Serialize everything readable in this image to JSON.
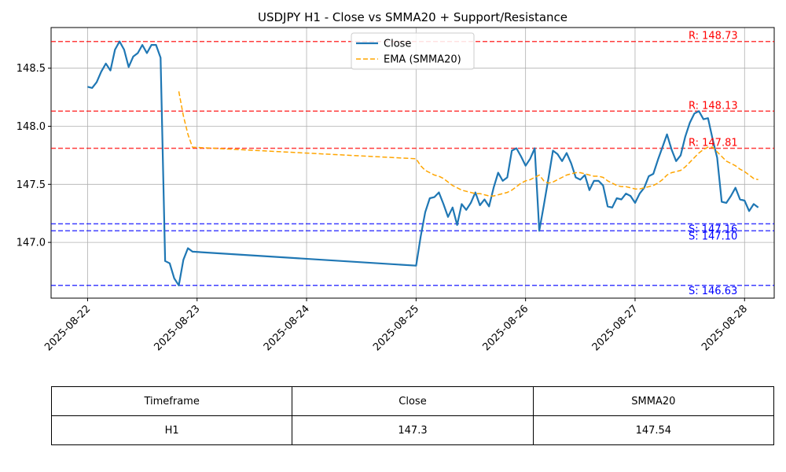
{
  "chart_data": {
    "type": "line",
    "title": "USDJPY H1 - Close vs SMMA20 + Support/Resistance",
    "xlabel": "",
    "ylabel": "",
    "x_ticks": [
      "2025-08-22",
      "2025-08-23",
      "2025-08-24",
      "2025-08-25",
      "2025-08-26",
      "2025-08-27",
      "2025-08-28"
    ],
    "y_ticks": [
      "147.0",
      "147.5",
      "148.0",
      "148.5"
    ],
    "xlim": [
      "2025-08-21 16:00",
      "2025-08-28 06:30"
    ],
    "ylim": [
      146.52,
      148.85
    ],
    "grid": true,
    "legend_position": "top-center",
    "series": [
      {
        "name": "Close",
        "color": "#1f77b4",
        "style": "solid",
        "points": [
          [
            "2025-08-22 00:00",
            148.34
          ],
          [
            "2025-08-22 01:00",
            148.33
          ],
          [
            "2025-08-22 02:00",
            148.38
          ],
          [
            "2025-08-22 03:00",
            148.47
          ],
          [
            "2025-08-22 04:00",
            148.54
          ],
          [
            "2025-08-22 05:00",
            148.48
          ],
          [
            "2025-08-22 06:00",
            148.66
          ],
          [
            "2025-08-22 07:00",
            148.73
          ],
          [
            "2025-08-22 08:00",
            148.66
          ],
          [
            "2025-08-22 09:00",
            148.51
          ],
          [
            "2025-08-22 10:00",
            148.6
          ],
          [
            "2025-08-22 11:00",
            148.63
          ],
          [
            "2025-08-22 12:00",
            148.7
          ],
          [
            "2025-08-22 13:00",
            148.63
          ],
          [
            "2025-08-22 14:00",
            148.7
          ],
          [
            "2025-08-22 15:00",
            148.7
          ],
          [
            "2025-08-22 16:00",
            148.59
          ],
          [
            "2025-08-22 17:00",
            146.84
          ],
          [
            "2025-08-22 18:00",
            146.82
          ],
          [
            "2025-08-22 19:00",
            146.69
          ],
          [
            "2025-08-22 20:00",
            146.63
          ],
          [
            "2025-08-22 21:00",
            146.85
          ],
          [
            "2025-08-22 22:00",
            146.95
          ],
          [
            "2025-08-22 23:00",
            146.92
          ],
          [
            "2025-08-25 00:00",
            146.8
          ],
          [
            "2025-08-25 01:00",
            147.05
          ],
          [
            "2025-08-25 02:00",
            147.26
          ],
          [
            "2025-08-25 03:00",
            147.38
          ],
          [
            "2025-08-25 04:00",
            147.39
          ],
          [
            "2025-08-25 05:00",
            147.43
          ],
          [
            "2025-08-25 06:00",
            147.33
          ],
          [
            "2025-08-25 07:00",
            147.22
          ],
          [
            "2025-08-25 08:00",
            147.3
          ],
          [
            "2025-08-25 09:00",
            147.15
          ],
          [
            "2025-08-25 10:00",
            147.33
          ],
          [
            "2025-08-25 11:00",
            147.28
          ],
          [
            "2025-08-25 12:00",
            147.34
          ],
          [
            "2025-08-25 13:00",
            147.43
          ],
          [
            "2025-08-25 14:00",
            147.32
          ],
          [
            "2025-08-25 15:00",
            147.37
          ],
          [
            "2025-08-25 16:00",
            147.31
          ],
          [
            "2025-08-25 17:00",
            147.47
          ],
          [
            "2025-08-25 18:00",
            147.6
          ],
          [
            "2025-08-25 19:00",
            147.53
          ],
          [
            "2025-08-25 20:00",
            147.56
          ],
          [
            "2025-08-25 21:00",
            147.79
          ],
          [
            "2025-08-25 22:00",
            147.81
          ],
          [
            "2025-08-25 23:00",
            147.74
          ],
          [
            "2025-08-26 00:00",
            147.66
          ],
          [
            "2025-08-26 01:00",
            147.72
          ],
          [
            "2025-08-26 02:00",
            147.81
          ],
          [
            "2025-08-26 03:00",
            147.1
          ],
          [
            "2025-08-26 04:00",
            147.32
          ],
          [
            "2025-08-26 05:00",
            147.55
          ],
          [
            "2025-08-26 06:00",
            147.79
          ],
          [
            "2025-08-26 07:00",
            147.76
          ],
          [
            "2025-08-26 08:00",
            147.7
          ],
          [
            "2025-08-26 09:00",
            147.77
          ],
          [
            "2025-08-26 10:00",
            147.68
          ],
          [
            "2025-08-26 11:00",
            147.56
          ],
          [
            "2025-08-26 12:00",
            147.54
          ],
          [
            "2025-08-26 13:00",
            147.58
          ],
          [
            "2025-08-26 14:00",
            147.45
          ],
          [
            "2025-08-26 15:00",
            147.53
          ],
          [
            "2025-08-26 16:00",
            147.53
          ],
          [
            "2025-08-26 17:00",
            147.49
          ],
          [
            "2025-08-26 18:00",
            147.31
          ],
          [
            "2025-08-26 19:00",
            147.3
          ],
          [
            "2025-08-26 20:00",
            147.38
          ],
          [
            "2025-08-26 21:00",
            147.37
          ],
          [
            "2025-08-26 22:00",
            147.42
          ],
          [
            "2025-08-26 23:00",
            147.4
          ],
          [
            "2025-08-27 00:00",
            147.34
          ],
          [
            "2025-08-27 01:00",
            147.42
          ],
          [
            "2025-08-27 02:00",
            147.47
          ],
          [
            "2025-08-27 03:00",
            147.57
          ],
          [
            "2025-08-27 04:00",
            147.59
          ],
          [
            "2025-08-27 05:00",
            147.71
          ],
          [
            "2025-08-27 06:00",
            147.82
          ],
          [
            "2025-08-27 07:00",
            147.93
          ],
          [
            "2025-08-27 08:00",
            147.8
          ],
          [
            "2025-08-27 09:00",
            147.7
          ],
          [
            "2025-08-27 10:00",
            147.75
          ],
          [
            "2025-08-27 11:00",
            147.91
          ],
          [
            "2025-08-27 12:00",
            148.03
          ],
          [
            "2025-08-27 13:00",
            148.11
          ],
          [
            "2025-08-27 14:00",
            148.13
          ],
          [
            "2025-08-27 15:00",
            148.06
          ],
          [
            "2025-08-27 16:00",
            148.07
          ],
          [
            "2025-08-27 17:00",
            147.89
          ],
          [
            "2025-08-27 18:00",
            147.73
          ],
          [
            "2025-08-27 19:00",
            147.35
          ],
          [
            "2025-08-27 20:00",
            147.34
          ],
          [
            "2025-08-27 21:00",
            147.4
          ],
          [
            "2025-08-27 22:00",
            147.47
          ],
          [
            "2025-08-27 23:00",
            147.37
          ],
          [
            "2025-08-28 00:00",
            147.36
          ],
          [
            "2025-08-28 01:00",
            147.27
          ],
          [
            "2025-08-28 02:00",
            147.33
          ],
          [
            "2025-08-28 03:00",
            147.3
          ]
        ]
      },
      {
        "name": "EMA (SMMA20)",
        "color": "#ffa500",
        "style": "dashed",
        "points": [
          [
            "2025-08-22 20:00",
            148.3
          ],
          [
            "2025-08-22 21:00",
            148.09
          ],
          [
            "2025-08-22 22:00",
            147.93
          ],
          [
            "2025-08-22 23:00",
            147.82
          ],
          [
            "2025-08-25 00:00",
            147.72
          ],
          [
            "2025-08-25 01:00",
            147.66
          ],
          [
            "2025-08-25 02:00",
            147.62
          ],
          [
            "2025-08-25 03:00",
            147.6
          ],
          [
            "2025-08-25 04:00",
            147.58
          ],
          [
            "2025-08-25 05:00",
            147.57
          ],
          [
            "2025-08-25 06:00",
            147.55
          ],
          [
            "2025-08-25 07:00",
            147.52
          ],
          [
            "2025-08-25 08:00",
            147.49
          ],
          [
            "2025-08-25 09:00",
            147.47
          ],
          [
            "2025-08-25 10:00",
            147.45
          ],
          [
            "2025-08-25 11:00",
            147.44
          ],
          [
            "2025-08-25 12:00",
            147.43
          ],
          [
            "2025-08-25 13:00",
            147.42
          ],
          [
            "2025-08-25 14:00",
            147.42
          ],
          [
            "2025-08-25 15:00",
            147.41
          ],
          [
            "2025-08-25 16:00",
            147.4
          ],
          [
            "2025-08-25 17:00",
            147.4
          ],
          [
            "2025-08-25 18:00",
            147.41
          ],
          [
            "2025-08-25 19:00",
            147.42
          ],
          [
            "2025-08-25 20:00",
            147.43
          ],
          [
            "2025-08-25 21:00",
            147.45
          ],
          [
            "2025-08-25 22:00",
            147.48
          ],
          [
            "2025-08-25 23:00",
            147.51
          ],
          [
            "2025-08-26 00:00",
            147.53
          ],
          [
            "2025-08-26 01:00",
            147.54
          ],
          [
            "2025-08-26 02:00",
            147.56
          ],
          [
            "2025-08-26 03:00",
            147.58
          ],
          [
            "2025-08-26 04:00",
            147.53
          ],
          [
            "2025-08-26 05:00",
            147.51
          ],
          [
            "2025-08-26 06:00",
            147.52
          ],
          [
            "2025-08-26 07:00",
            147.54
          ],
          [
            "2025-08-26 08:00",
            147.56
          ],
          [
            "2025-08-26 09:00",
            147.58
          ],
          [
            "2025-08-26 10:00",
            147.59
          ],
          [
            "2025-08-26 11:00",
            147.6
          ],
          [
            "2025-08-26 12:00",
            147.6
          ],
          [
            "2025-08-26 13:00",
            147.59
          ],
          [
            "2025-08-26 14:00",
            147.58
          ],
          [
            "2025-08-26 15:00",
            147.57
          ],
          [
            "2025-08-26 16:00",
            147.57
          ],
          [
            "2025-08-26 17:00",
            147.56
          ],
          [
            "2025-08-26 18:00",
            147.53
          ],
          [
            "2025-08-26 19:00",
            147.51
          ],
          [
            "2025-08-26 20:00",
            147.49
          ],
          [
            "2025-08-26 21:00",
            147.48
          ],
          [
            "2025-08-26 22:00",
            147.48
          ],
          [
            "2025-08-26 23:00",
            147.47
          ],
          [
            "2025-08-27 00:00",
            147.46
          ],
          [
            "2025-08-27 01:00",
            147.46
          ],
          [
            "2025-08-27 02:00",
            147.47
          ],
          [
            "2025-08-27 03:00",
            147.48
          ],
          [
            "2025-08-27 04:00",
            147.49
          ],
          [
            "2025-08-27 05:00",
            147.51
          ],
          [
            "2025-08-27 06:00",
            147.54
          ],
          [
            "2025-08-27 07:00",
            147.58
          ],
          [
            "2025-08-27 08:00",
            147.6
          ],
          [
            "2025-08-27 09:00",
            147.61
          ],
          [
            "2025-08-27 10:00",
            147.62
          ],
          [
            "2025-08-27 11:00",
            147.65
          ],
          [
            "2025-08-27 12:00",
            147.69
          ],
          [
            "2025-08-27 13:00",
            147.73
          ],
          [
            "2025-08-27 14:00",
            147.77
          ],
          [
            "2025-08-27 15:00",
            147.8
          ],
          [
            "2025-08-27 16:00",
            147.82
          ],
          [
            "2025-08-27 17:00",
            147.82
          ],
          [
            "2025-08-27 18:00",
            147.78
          ],
          [
            "2025-08-27 19:00",
            147.74
          ],
          [
            "2025-08-27 20:00",
            147.7
          ],
          [
            "2025-08-27 21:00",
            147.68
          ],
          [
            "2025-08-27 22:00",
            147.66
          ],
          [
            "2025-08-27 23:00",
            147.63
          ],
          [
            "2025-08-28 00:00",
            147.61
          ],
          [
            "2025-08-28 01:00",
            147.58
          ],
          [
            "2025-08-28 02:00",
            147.55
          ],
          [
            "2025-08-28 03:00",
            147.54
          ]
        ]
      }
    ],
    "resistance_levels": [
      {
        "value": 148.73,
        "label": "R: 148.73"
      },
      {
        "value": 148.13,
        "label": "R: 148.13"
      },
      {
        "value": 147.81,
        "label": "R: 147.81"
      }
    ],
    "support_levels": [
      {
        "value": 147.16,
        "label": "S: 147.16"
      },
      {
        "value": 147.1,
        "label": "S: 147.10"
      },
      {
        "value": 146.63,
        "label": "S: 146.63"
      }
    ],
    "colors": {
      "close": "#1f77b4",
      "smma": "#ffa500",
      "resistance": "#ff0000",
      "support": "#0000ff",
      "grid": "#b0b0b0"
    }
  },
  "table": {
    "headers": [
      "Timeframe",
      "Close",
      "SMMA20"
    ],
    "rows": [
      [
        "H1",
        "147.3",
        "147.54"
      ]
    ]
  }
}
